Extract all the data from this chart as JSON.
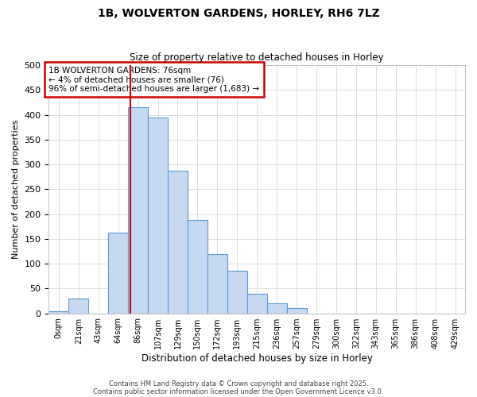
{
  "title": "1B, WOLVERTON GARDENS, HORLEY, RH6 7LZ",
  "subtitle": "Size of property relative to detached houses in Horley",
  "xlabel": "Distribution of detached houses by size in Horley",
  "ylabel": "Number of detached properties",
  "bin_labels": [
    "0sqm",
    "21sqm",
    "43sqm",
    "64sqm",
    "86sqm",
    "107sqm",
    "129sqm",
    "150sqm",
    "172sqm",
    "193sqm",
    "215sqm",
    "236sqm",
    "257sqm",
    "279sqm",
    "300sqm",
    "322sqm",
    "343sqm",
    "365sqm",
    "386sqm",
    "408sqm",
    "429sqm"
  ],
  "bar_values": [
    4,
    30,
    0,
    163,
    415,
    395,
    287,
    188,
    120,
    85,
    40,
    20,
    10,
    0,
    0,
    0,
    0,
    0,
    0,
    0
  ],
  "bar_color": "#c6d9f1",
  "bar_edge_color": "#5b9bd5",
  "vline_bin": 3.62,
  "vline_color": "#cc0000",
  "annotation_text": "1B WOLVERTON GARDENS: 76sqm\n← 4% of detached houses are smaller (76)\n96% of semi-detached houses are larger (1,683) →",
  "annotation_box_color": "white",
  "annotation_box_edge_color": "#cc0000",
  "ylim": [
    0,
    500
  ],
  "yticks": [
    0,
    50,
    100,
    150,
    200,
    250,
    300,
    350,
    400,
    450,
    500
  ],
  "grid_color": "#d0d0d0",
  "background_color": "white",
  "footer1": "Contains HM Land Registry data © Crown copyright and database right 2025.",
  "footer2": "Contains public sector information licensed under the Open Government Licence v3.0.",
  "num_bins": 20
}
